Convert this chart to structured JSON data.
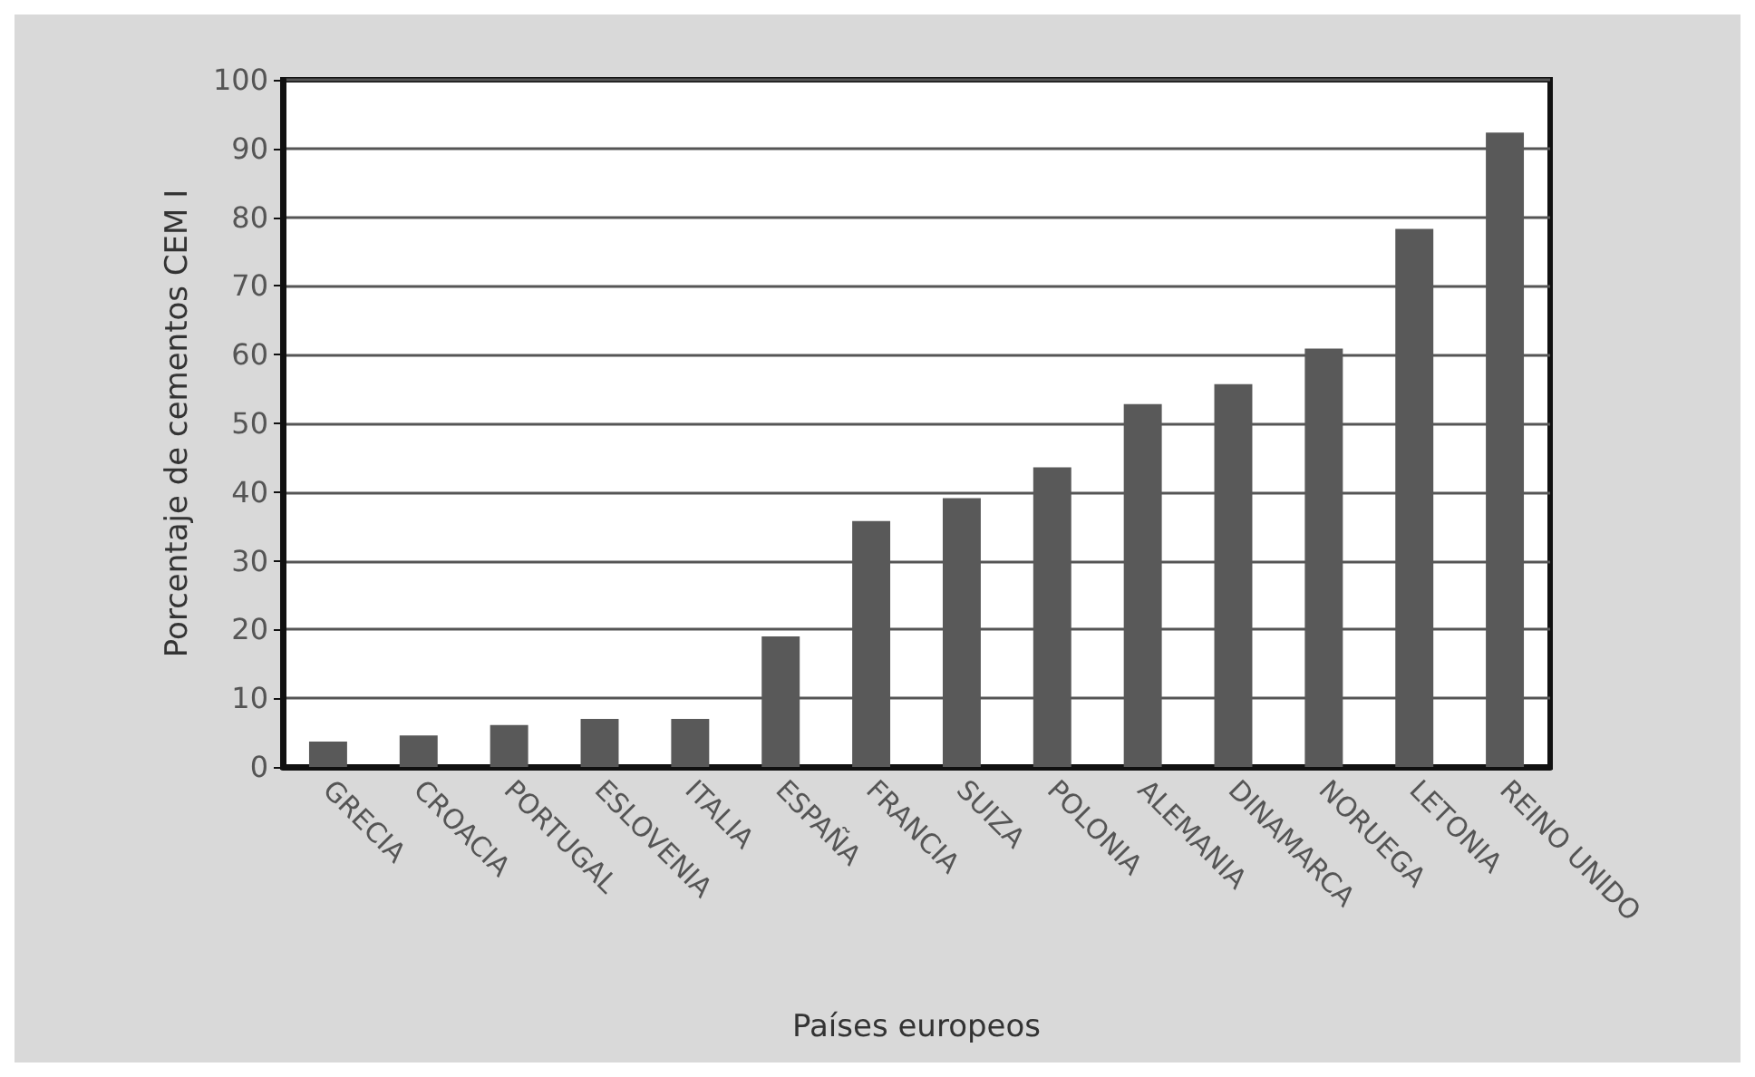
{
  "chart_data": {
    "type": "bar",
    "xlabel": "Países europeos",
    "ylabel": "Porcentaje de cementos CEM I",
    "categories": [
      "GRECIA",
      "CROACIA",
      "PORTUGAL",
      "ESLOVENIA",
      "ITALIA",
      "ESPAÑA",
      "FRANCIA",
      "SUIZA",
      "POLONIA",
      "ALEMANIA",
      "DINAMARCA",
      "NORUEGA",
      "LETONIA",
      "REINO UNIDO"
    ],
    "values": [
      3.7,
      4.6,
      6.1,
      7.0,
      7.0,
      19.0,
      35.8,
      39.1,
      43.6,
      52.8,
      55.7,
      60.9,
      78.3,
      92.3
    ],
    "color": "#595959",
    "ylim": [
      0,
      100
    ],
    "yticks": [
      0,
      10,
      20,
      30,
      40,
      50,
      60,
      70,
      80,
      90,
      100
    ],
    "grid": "y"
  }
}
